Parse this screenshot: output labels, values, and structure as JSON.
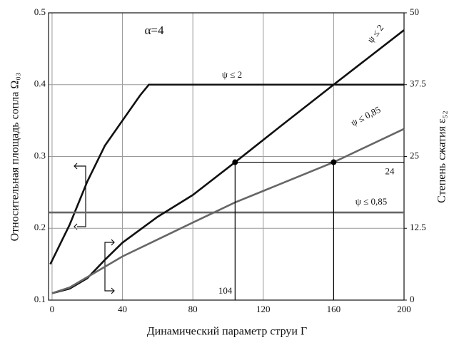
{
  "chart_data": {
    "type": "line",
    "annotation": "α=4",
    "xlabel": "Динамический параметр струи Г",
    "ylabel": "Относительная площадь сопла Ω₀₃",
    "y2label": "Степень сжатия ε₅₂",
    "xlim": [
      -2,
      200
    ],
    "xticks": [
      0,
      40,
      80,
      120,
      160,
      200
    ],
    "ylim": [
      0.1,
      0.5
    ],
    "yticks": [
      0.1,
      0.2,
      0.3,
      0.4,
      0.5
    ],
    "y2lim": [
      0,
      50
    ],
    "y2ticks": [
      0,
      12.5,
      25,
      37.5,
      50
    ],
    "grid": true,
    "series": [
      {
        "name": "ψ ≤ 2",
        "color": "#111111",
        "x": [
          -1,
          0,
          10,
          20,
          30,
          40,
          50,
          55,
          200
        ],
        "values": [
          0.15,
          0.155,
          0.205,
          0.265,
          0.315,
          0.35,
          0.385,
          0.4,
          0.4
        ]
      },
      {
        "name": "ψ ≤ 0,85",
        "color": "#666666",
        "x": [
          -2,
          200
        ],
        "values": [
          0.222,
          0.222
        ]
      },
      {
        "name": "ψ ≤ 2",
        "color": "#111111",
        "axis": "y2",
        "x": [
          0,
          10,
          20,
          30,
          40,
          60,
          80,
          104,
          130,
          160,
          200
        ],
        "values": [
          1.2,
          2,
          3.8,
          7,
          10,
          14.5,
          18.3,
          24,
          30.3,
          37.5,
          47
        ]
      },
      {
        "name": "ψ ≤ 0,85",
        "color": "#666666",
        "axis": "y2",
        "x": [
          0,
          10,
          20,
          30,
          40,
          80,
          104,
          120,
          160,
          200
        ],
        "values": [
          1.2,
          2.2,
          4,
          5.8,
          7.6,
          13.5,
          17,
          19,
          24,
          29.8
        ]
      },
      {
        "type": "scatter",
        "color": "#000000",
        "axis": "y2",
        "x": [
          104,
          160
        ],
        "values": [
          24,
          24
        ]
      }
    ]
  }
}
